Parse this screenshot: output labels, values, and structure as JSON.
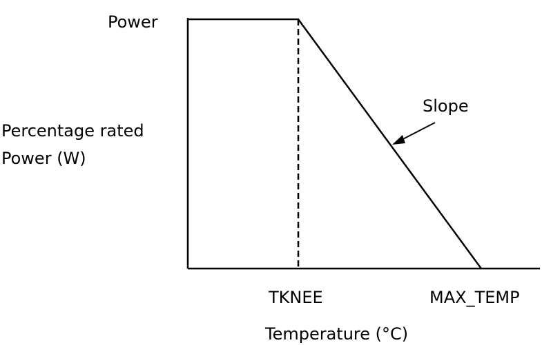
{
  "chart_data": {
    "type": "line",
    "xlabel": "Temperature (°C)",
    "ylabel": [
      "Percentage rated",
      "Power (W)"
    ],
    "y_tick_label": "Power",
    "x_tick_labels": [
      "TKNEE",
      "MAX_TEMP"
    ],
    "annotation": "Slope",
    "series": [
      {
        "points": [
          {
            "x": "start",
            "y": 1
          },
          {
            "x": "TKNEE",
            "y": 1
          },
          {
            "x": "MAX_TEMP",
            "y": 0
          }
        ]
      }
    ],
    "reference_lines": [
      {
        "type": "vertical",
        "x": "TKNEE",
        "style": "dashed"
      }
    ],
    "grid": false,
    "colors": {
      "line": "#000000",
      "text": "#000000",
      "background": "#ffffff"
    }
  }
}
